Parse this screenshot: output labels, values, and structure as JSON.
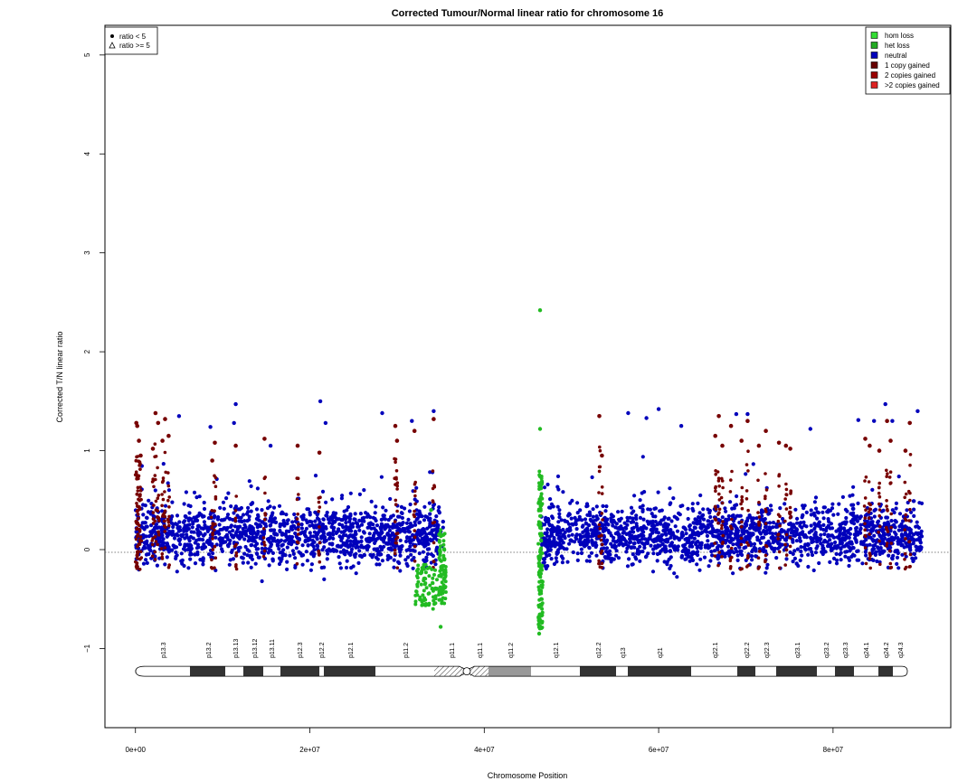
{
  "chart_data": {
    "type": "scatter",
    "title": "Corrected Tumour/Normal linear ratio for chromosome  16",
    "xlabel": "Chromosome Position",
    "ylabel": "Corrected T/N linear ratio",
    "xlim": [
      -3500000,
      93500000
    ],
    "ylim": [
      -1.8,
      5.3
    ],
    "x_ticks": [
      0,
      20000000,
      40000000,
      60000000,
      80000000
    ],
    "x_tick_labels": [
      "0e+00",
      "2e+07",
      "4e+07",
      "6e+07",
      "8e+07"
    ],
    "y_ticks": [
      -1,
      0,
      1,
      2,
      3,
      4,
      5
    ],
    "y_tick_labels": [
      "−1",
      "0",
      "1",
      "2",
      "3",
      "4",
      "5"
    ],
    "reference_line_y": 0,
    "shape_legend": {
      "position": "top-left",
      "entries": [
        {
          "label": "ratio < 5",
          "symbol": "filled-circle"
        },
        {
          "label": "ratio >= 5",
          "symbol": "open-triangle"
        }
      ]
    },
    "legend": {
      "position": "top-right",
      "entries": [
        {
          "label": "hom loss",
          "color": "#33dd33"
        },
        {
          "label": "het loss",
          "color": "#22aa22"
        },
        {
          "label": "neutral",
          "color": "#0000bb"
        },
        {
          "label": "1 copy gained",
          "color": "#660000"
        },
        {
          "label": "2 copies gained",
          "color": "#990000"
        },
        {
          "label": ">2 copies gained",
          "color": "#dd2222"
        }
      ]
    },
    "series": [
      {
        "name": "neutral",
        "color": "#0000bb",
        "ranges": [
          [
            0,
            35300000
          ],
          [
            46500000,
            90200000
          ]
        ],
        "y_center": 0.15,
        "y_spread": 0.32,
        "approx_y_range": [
          -0.6,
          1.5
        ]
      },
      {
        "name": "1 copy gained",
        "color": "#770000",
        "approx_y_range": [
          0.7,
          1.38
        ],
        "points": [
          [
            100000,
            1.28
          ],
          [
            200000,
            1.25
          ],
          [
            400000,
            1.1
          ],
          [
            600000,
            0.95
          ],
          [
            2000000,
            1.02
          ],
          [
            2300000,
            1.38
          ],
          [
            2600000,
            1.28
          ],
          [
            3100000,
            1.1
          ],
          [
            3400000,
            1.32
          ],
          [
            3800000,
            1.15
          ],
          [
            8800000,
            0.9
          ],
          [
            9100000,
            1.08
          ],
          [
            11500000,
            1.05
          ],
          [
            14800000,
            1.12
          ],
          [
            18600000,
            1.05
          ],
          [
            21100000,
            0.98
          ],
          [
            29800000,
            1.25
          ],
          [
            30000000,
            1.1
          ],
          [
            32000000,
            1.2
          ],
          [
            34200000,
            1.32
          ],
          [
            53200000,
            1.35
          ],
          [
            53500000,
            0.95
          ],
          [
            66500000,
            1.15
          ],
          [
            66900000,
            1.35
          ],
          [
            67300000,
            1.05
          ],
          [
            68300000,
            1.25
          ],
          [
            69500000,
            1.1
          ],
          [
            70200000,
            1.3
          ],
          [
            71500000,
            1.05
          ],
          [
            72300000,
            1.2
          ],
          [
            73800000,
            1.08
          ],
          [
            74600000,
            1.05
          ],
          [
            75100000,
            1.02
          ],
          [
            83700000,
            1.12
          ],
          [
            84200000,
            1.05
          ],
          [
            85300000,
            1.0
          ],
          [
            86200000,
            1.3
          ],
          [
            86600000,
            1.1
          ],
          [
            88300000,
            1.0
          ],
          [
            88800000,
            1.28
          ]
        ]
      },
      {
        "name": "het loss",
        "color": "#22bb22",
        "ranges": [
          [
            32000000,
            35600000
          ],
          [
            46200000,
            46700000
          ]
        ],
        "approx_y_range": [
          -0.85,
          2.42
        ],
        "outliers": [
          [
            46400000,
            2.42
          ],
          [
            46400000,
            1.22
          ],
          [
            33900000,
            0.4
          ],
          [
            35000000,
            -0.78
          ],
          [
            46300000,
            -0.85
          ]
        ]
      }
    ]
  },
  "ideogram": {
    "bands": [
      "p13.3",
      "p13.2",
      "p13.13",
      "p13.12",
      "p13.11",
      "p12.3",
      "p12.2",
      "p12.1",
      "p11.2",
      "p11.1",
      "q11.1",
      "q11.2",
      "q12.1",
      "q12.2",
      "q13",
      "q21",
      "q22.1",
      "q22.2",
      "q22.3",
      "q23.1",
      "q23.2",
      "q23.3",
      "q24.1",
      "q24.2",
      "q24.3"
    ]
  }
}
